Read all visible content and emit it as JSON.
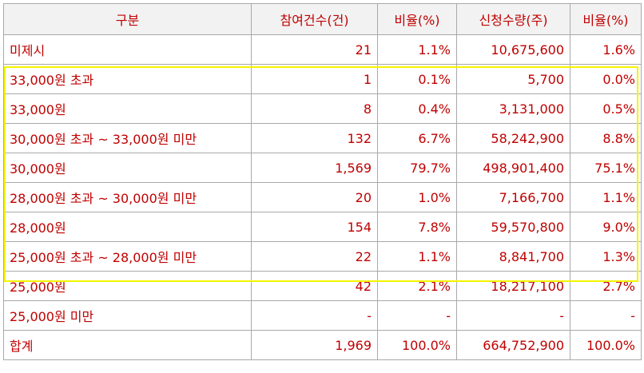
{
  "columns": [
    "구분",
    "참여건수(건)",
    "비율(%)",
    "신청수량(주)",
    "비율(%)"
  ],
  "rows": [
    [
      "미제시",
      "21",
      "1.1%",
      "10,675,600",
      "1.6%"
    ],
    [
      "33,000원 초과",
      "1",
      "0.1%",
      "5,700",
      "0.0%"
    ],
    [
      "33,000원",
      "8",
      "0.4%",
      "3,131,000",
      "0.5%"
    ],
    [
      "30,000원 초과 ~ 33,000원 미만",
      "132",
      "6.7%",
      "58,242,900",
      "8.8%"
    ],
    [
      "30,000원",
      "1,569",
      "79.7%",
      "498,901,400",
      "75.1%"
    ],
    [
      "28,000원 초과 ~ 30,000원 미만",
      "20",
      "1.0%",
      "7,166,700",
      "1.1%"
    ],
    [
      "28,000원",
      "154",
      "7.8%",
      "59,570,800",
      "9.0%"
    ],
    [
      "25,000원 초과 ~ 28,000원 미만",
      "22",
      "1.1%",
      "8,841,700",
      "1.3%"
    ],
    [
      "25,000원",
      "42",
      "2.1%",
      "18,217,100",
      "2.7%"
    ],
    [
      "25,000원 미만",
      "-",
      "-",
      "-",
      "-"
    ],
    [
      "합계",
      "1,969",
      "100.0%",
      "664,752,900",
      "100.0%"
    ]
  ],
  "colors": {
    "text": "#c00000",
    "header_bg": "#f2f2f2",
    "grid": "#a9a9a9",
    "highlight": "#f4f400"
  }
}
